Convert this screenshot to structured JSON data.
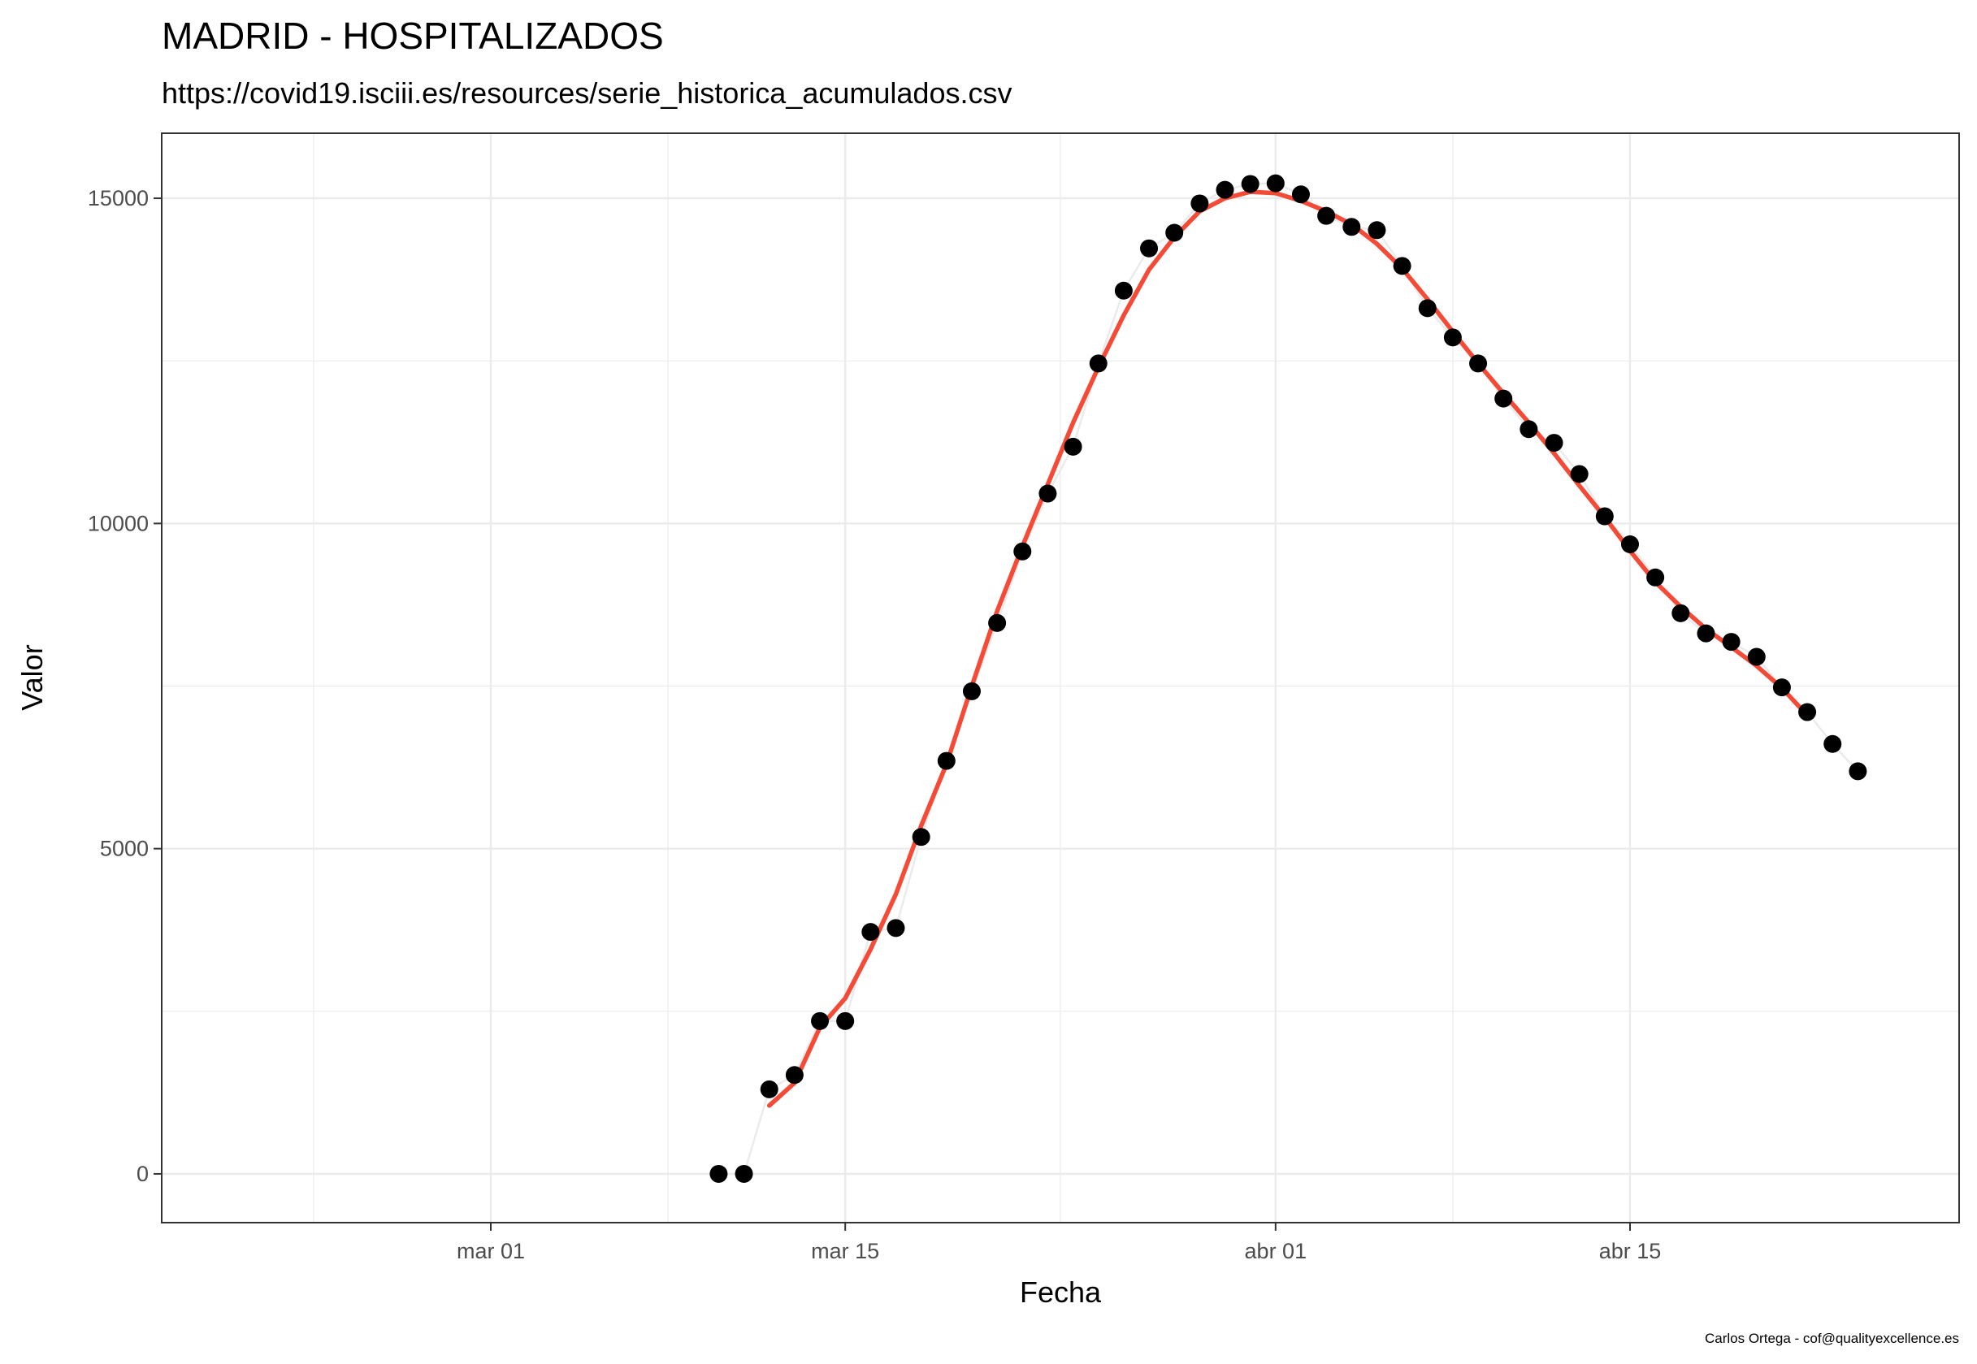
{
  "chart_data": {
    "type": "scatter",
    "title": "MADRID - HOSPITALIZADOS",
    "subtitle": "https://covid19.isciii.es/resources/serie_historica_acumulados.csv",
    "xlabel": "Fecha",
    "ylabel": "Valor",
    "caption": "Carlos Ortega - cof@qualityexcellence.es",
    "x_ticks": [
      {
        "date": "2020-03-01",
        "label": "mar 01"
      },
      {
        "date": "2020-03-15",
        "label": "mar 15"
      },
      {
        "date": "2020-04-01",
        "label": "abr 01"
      },
      {
        "date": "2020-04-15",
        "label": "abr 15"
      }
    ],
    "y_ticks": [
      0,
      5000,
      10000,
      15000
    ],
    "xlim": [
      "2020-02-17",
      "2020-04-28"
    ],
    "ylim": [
      -750,
      16000
    ],
    "grid": true,
    "series": [
      {
        "type": "points",
        "color": "#000000",
        "x": [
          "2020-03-10",
          "2020-03-11",
          "2020-03-12",
          "2020-03-13",
          "2020-03-14",
          "2020-03-15",
          "2020-03-16",
          "2020-03-17",
          "2020-03-18",
          "2020-03-19",
          "2020-03-20",
          "2020-03-21",
          "2020-03-22",
          "2020-03-23",
          "2020-03-24",
          "2020-03-25",
          "2020-03-26",
          "2020-03-27",
          "2020-03-28",
          "2020-03-29",
          "2020-03-30",
          "2020-03-31",
          "2020-04-01",
          "2020-04-02",
          "2020-04-03",
          "2020-04-04",
          "2020-04-05",
          "2020-04-06",
          "2020-04-07",
          "2020-04-08",
          "2020-04-09",
          "2020-04-10",
          "2020-04-11",
          "2020-04-12",
          "2020-04-13",
          "2020-04-14",
          "2020-04-15",
          "2020-04-16",
          "2020-04-17",
          "2020-04-18",
          "2020-04-19",
          "2020-04-20",
          "2020-04-21",
          "2020-04-22",
          "2020-04-23",
          "2020-04-24"
        ],
        "y": [
          0,
          0,
          1300,
          1520,
          2350,
          2350,
          3720,
          3780,
          5180,
          6350,
          7420,
          8470,
          9570,
          10460,
          11180,
          12460,
          13580,
          14230,
          14470,
          14920,
          15130,
          15220,
          15230,
          15060,
          14730,
          14560,
          14510,
          13960,
          13310,
          12860,
          12460,
          11920,
          11450,
          11240,
          10760,
          10110,
          9680,
          9170,
          8620,
          8310,
          8180,
          7950,
          7480,
          7100,
          6610,
          6190
        ]
      },
      {
        "type": "line",
        "color": "#ebebeb",
        "x": [
          "2020-03-10",
          "2020-03-11",
          "2020-03-12",
          "2020-03-13",
          "2020-03-14",
          "2020-03-15",
          "2020-03-16",
          "2020-03-17",
          "2020-03-18",
          "2020-03-19",
          "2020-03-20",
          "2020-03-21",
          "2020-03-22",
          "2020-03-23",
          "2020-03-24",
          "2020-03-25",
          "2020-03-26",
          "2020-03-27",
          "2020-03-28",
          "2020-03-29",
          "2020-03-30",
          "2020-03-31",
          "2020-04-01",
          "2020-04-02",
          "2020-04-03",
          "2020-04-04",
          "2020-04-05",
          "2020-04-06",
          "2020-04-07",
          "2020-04-08",
          "2020-04-09",
          "2020-04-10",
          "2020-04-11",
          "2020-04-12",
          "2020-04-13",
          "2020-04-14",
          "2020-04-15",
          "2020-04-16",
          "2020-04-17",
          "2020-04-18",
          "2020-04-19",
          "2020-04-20",
          "2020-04-21",
          "2020-04-22",
          "2020-04-23",
          "2020-04-24"
        ],
        "y": [
          0,
          0,
          1300,
          1520,
          2350,
          2350,
          3720,
          3780,
          5180,
          6350,
          7420,
          8470,
          9570,
          10460,
          11180,
          12460,
          13580,
          14230,
          14470,
          14920,
          15130,
          15220,
          15230,
          15060,
          14730,
          14560,
          14510,
          13960,
          13310,
          12860,
          12460,
          11920,
          11450,
          11240,
          10760,
          10110,
          9680,
          9170,
          8620,
          8310,
          8180,
          7950,
          7480,
          7100,
          6610,
          6190
        ]
      },
      {
        "type": "smooth",
        "color": "#f44a36",
        "x": [
          "2020-03-12",
          "2020-03-13",
          "2020-03-14",
          "2020-03-15",
          "2020-03-16",
          "2020-03-17",
          "2020-03-18",
          "2020-03-19",
          "2020-03-20",
          "2020-03-21",
          "2020-03-22",
          "2020-03-23",
          "2020-03-24",
          "2020-03-25",
          "2020-03-26",
          "2020-03-27",
          "2020-03-28",
          "2020-03-29",
          "2020-03-30",
          "2020-03-31",
          "2020-04-01",
          "2020-04-02",
          "2020-04-03",
          "2020-04-04",
          "2020-04-05",
          "2020-04-06",
          "2020-04-07",
          "2020-04-08",
          "2020-04-09",
          "2020-04-10",
          "2020-04-11",
          "2020-04-12",
          "2020-04-13",
          "2020-04-14",
          "2020-04-15",
          "2020-04-16",
          "2020-04-17",
          "2020-04-18",
          "2020-04-19",
          "2020-04-20",
          "2020-04-21",
          "2020-04-22"
        ],
        "y": [
          1050,
          1400,
          2250,
          2700,
          3450,
          4300,
          5350,
          6300,
          7500,
          8650,
          9650,
          10600,
          11550,
          12400,
          13200,
          13900,
          14400,
          14800,
          15000,
          15100,
          15080,
          14960,
          14800,
          14600,
          14300,
          13920,
          13450,
          12950,
          12460,
          12000,
          11550,
          11080,
          10580,
          10100,
          9580,
          9100,
          8720,
          8380,
          8100,
          7810,
          7470,
          7050
        ]
      }
    ]
  }
}
